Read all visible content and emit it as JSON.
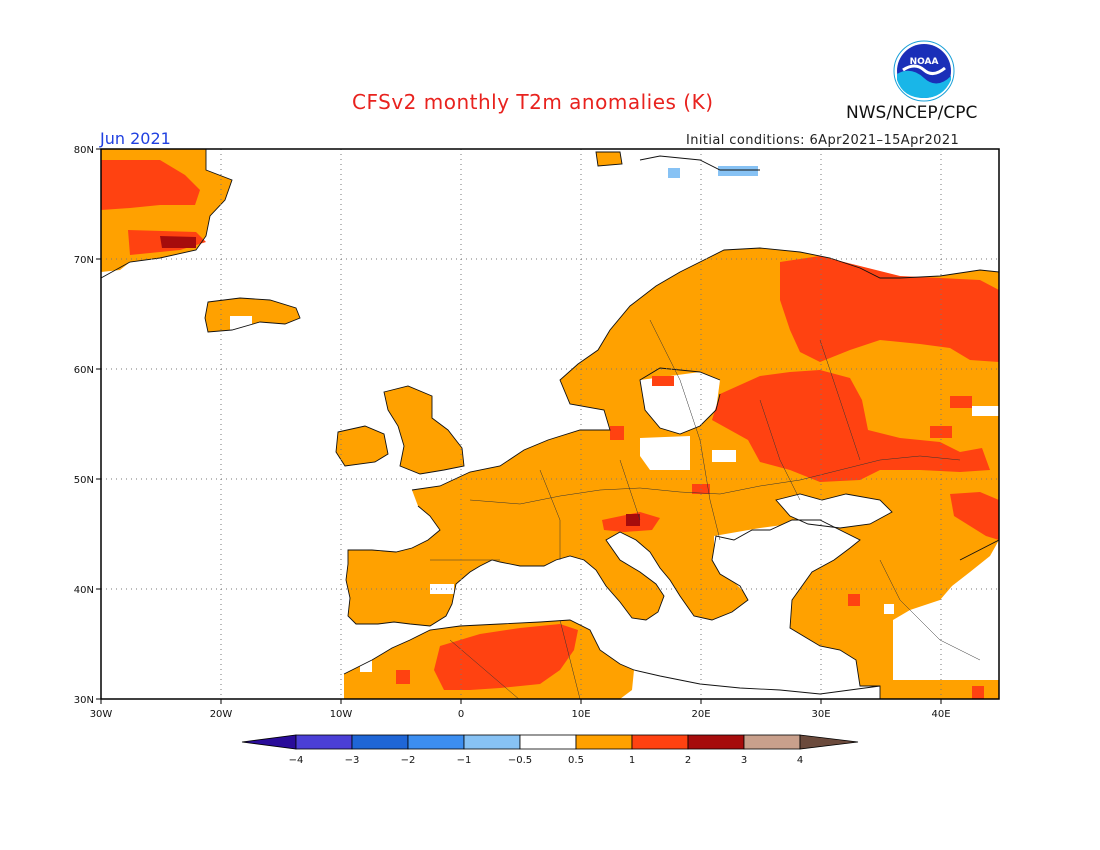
{
  "title": "CFSv2 monthly T2m anomalies (K)",
  "agency": "NWS/NCEP/CPC",
  "logo_text": "NOAA",
  "month": "Jun 2021",
  "initial_conditions": "Initial conditions: 6Apr2021–15Apr2021",
  "map": {
    "lon_range": [
      -30,
      45
    ],
    "lat_range": [
      30,
      80
    ],
    "lon_ticks": [
      "30W",
      "20W",
      "10W",
      "0",
      "10E",
      "20E",
      "30E",
      "40E"
    ],
    "lat_ticks": [
      "30N",
      "40N",
      "50N",
      "60N",
      "70N",
      "80N"
    ],
    "grid": "dotted"
  },
  "colorbar": {
    "labels": [
      "−4",
      "−3",
      "−2",
      "−1",
      "−0.5",
      "0.5",
      "1",
      "2",
      "3",
      "4"
    ],
    "colors": [
      "#2a0c9a",
      "#4b3fd6",
      "#1f66d6",
      "#3c8ef0",
      "#87c2f4",
      "#ffffff",
      "#ffa100",
      "#ff4211",
      "#a60c0c",
      "#c9a08c",
      "#6b4a3c"
    ]
  },
  "anomaly_colors": {
    "cool": "#87c2f4",
    "warm_0_5_to_1": "#ffa100",
    "warm_1_to_2": "#ff4211",
    "warm_2_to_3": "#a60c0c"
  }
}
